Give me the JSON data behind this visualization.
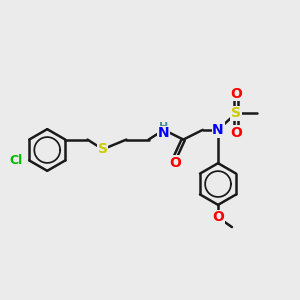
{
  "bg_color": "#ebebeb",
  "bond_color": "#1a1a1a",
  "bond_width": 1.8,
  "atom_colors": {
    "H": "#4a9090",
    "N": "#0000ff",
    "O": "#ff0000",
    "S_thio": "#cccc00",
    "S_sulfonyl": "#cccc00",
    "Cl": "#00bb00"
  },
  "font_size": 9
}
